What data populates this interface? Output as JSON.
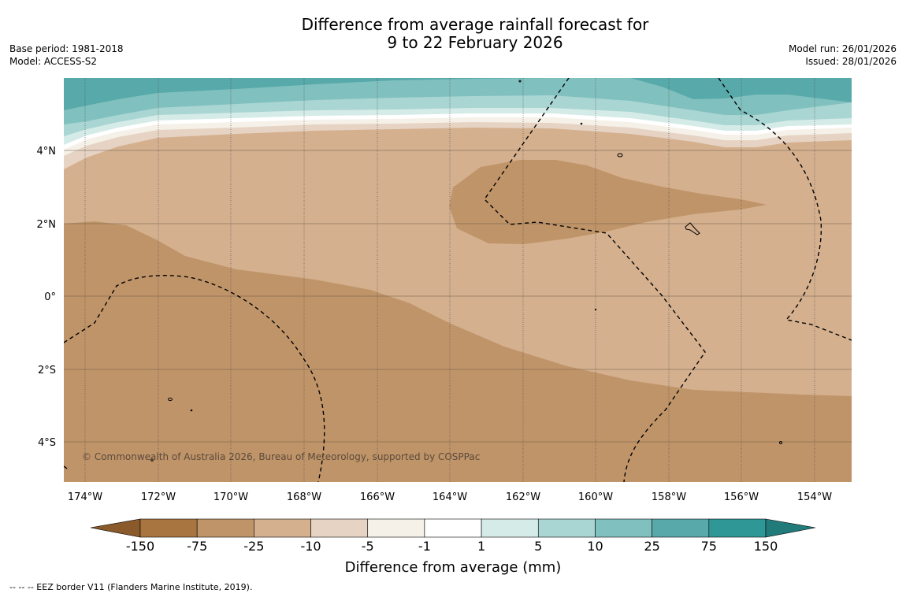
{
  "title": {
    "line1": "Difference from average rainfall forecast for",
    "line2": "9 to 22 February 2026"
  },
  "meta_left": {
    "base_period": "Base period: 1981-2018",
    "model": "Model: ACCESS-S2"
  },
  "meta_right": {
    "model_run": "Model run: 26/01/2026",
    "issued": "Issued: 28/01/2026"
  },
  "map": {
    "x_ticks": [
      "174°W",
      "172°W",
      "170°W",
      "168°W",
      "166°W",
      "164°W",
      "162°W",
      "160°W",
      "158°W",
      "156°W",
      "154°W"
    ],
    "y_ticks": [
      "4°N",
      "2°N",
      "0°",
      "2°S",
      "4°S"
    ],
    "copyright": "© Commonwealth of Australia 2026, Bureau of Meteorology, supported by COSPPac"
  },
  "colorbar": {
    "title": "Difference from average (mm)",
    "labels": [
      "-150",
      "-75",
      "-25",
      "-10",
      "-5",
      "-1",
      "1",
      "5",
      "10",
      "25",
      "75",
      "150"
    ],
    "colors": [
      "#a87540",
      "#c09469",
      "#d4b08f",
      "#e6d3c3",
      "#f5f0e8",
      "#ffffff",
      "#d5ebe8",
      "#a9d5d3",
      "#80c0be",
      "#58a9aa",
      "#2f9897"
    ],
    "under_color": "#8b5a2b",
    "over_color": "#227b7b"
  },
  "footer": "--  --  -- EEZ border V11 (Flanders Marine Institute, 2019)."
}
